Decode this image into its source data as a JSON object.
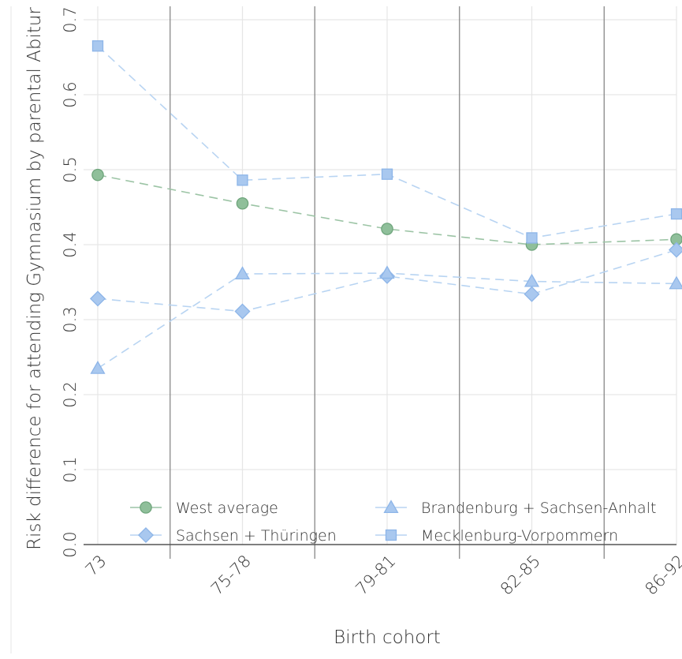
{
  "chart_data": {
    "type": "line",
    "title": "",
    "xlabel": "Birth cohort",
    "ylabel": "Risk difference for attending Gymnasium by parental Abitur",
    "categories": [
      "73",
      "75-78",
      "79-81",
      "82-85",
      "86-92"
    ],
    "ylim": [
      0.0,
      0.7
    ],
    "yticks": [
      "0.0",
      "0.1",
      "0.2",
      "0.3",
      "0.4",
      "0.5",
      "0.6",
      "0.7"
    ],
    "grid": true,
    "legend_position": "bottom",
    "series": [
      {
        "name": "West average",
        "marker": "circle",
        "color": "#8fbf9a",
        "line_color": "#9cc4a5",
        "values": [
          0.493,
          0.455,
          0.421,
          0.4,
          0.407
        ]
      },
      {
        "name": "Sachsen + Thüringen",
        "marker": "diamond",
        "color": "#a9c8ef",
        "line_color": "#b8d4f2",
        "values": [
          0.328,
          0.311,
          0.358,
          0.334,
          0.393
        ]
      },
      {
        "name": "Brandenburg + Sachsen-Anhalt",
        "marker": "triangle",
        "color": "#a9c8ef",
        "line_color": "#b8d4f2",
        "values": [
          0.235,
          0.361,
          0.362,
          0.351,
          0.348
        ]
      },
      {
        "name": "Mecklenburg-Vorpommern",
        "marker": "square",
        "color": "#a9c8ef",
        "line_color": "#b8d4f2",
        "values": [
          0.665,
          0.486,
          0.494,
          0.409,
          0.441
        ]
      }
    ],
    "legend_order": [
      0,
      2,
      1,
      3
    ]
  }
}
